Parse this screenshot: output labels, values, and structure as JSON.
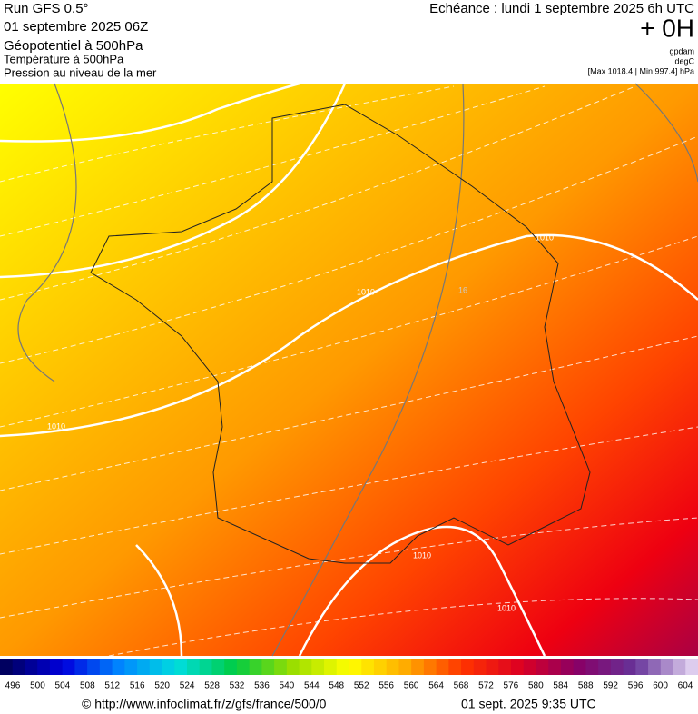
{
  "header": {
    "run": "Run GFS 0.5°",
    "date": "01 septembre 2025 06Z",
    "line1": "Géopotentiel à 500hPa",
    "line2": "Température à 500hPa",
    "line3": "Pression au niveau de la mer",
    "forecast": "Echéance : lundi 1 septembre 2025 6h UTC",
    "offset": "+ 0H",
    "unit1": "gpdam",
    "unit2": "degC",
    "minmax": "[Max 1018.4 | Min 997.4] hPa"
  },
  "map": {
    "contour_labels": [
      "1010",
      "1010",
      "1010",
      "1010",
      "1010",
      "16"
    ]
  },
  "legend": {
    "ticks": [
      496,
      500,
      504,
      508,
      512,
      516,
      520,
      524,
      528,
      532,
      536,
      540,
      544,
      548,
      552,
      556,
      560,
      564,
      568,
      572,
      576,
      580,
      584,
      588,
      592,
      596,
      600,
      604
    ]
  },
  "footer": {
    "source": "© http://www.infoclimat.fr/z/gfs/france/500/0",
    "time": "01 sept. 2025  9:35 UTC"
  }
}
